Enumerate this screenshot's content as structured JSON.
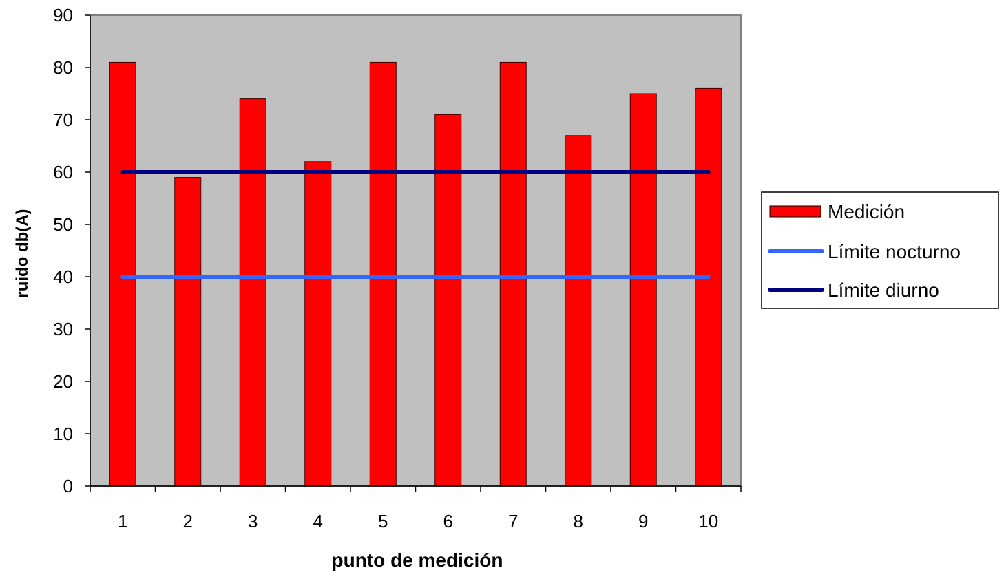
{
  "chart_data": {
    "type": "bar",
    "categories": [
      "1",
      "2",
      "3",
      "4",
      "5",
      "6",
      "7",
      "8",
      "9",
      "10"
    ],
    "series": [
      {
        "name": "Medición",
        "kind": "bar",
        "color": "#ff0000",
        "values": [
          81,
          59,
          74,
          62,
          81,
          71,
          81,
          67,
          75,
          76
        ]
      },
      {
        "name": "Límite nocturno",
        "kind": "line",
        "color": "#3366ff",
        "values": [
          40,
          40,
          40,
          40,
          40,
          40,
          40,
          40,
          40,
          40
        ]
      },
      {
        "name": "Límite diurno",
        "kind": "line",
        "color": "#000080",
        "values": [
          60,
          60,
          60,
          60,
          60,
          60,
          60,
          60,
          60,
          60
        ]
      }
    ],
    "title": "",
    "xlabel": "punto de medición",
    "ylabel": "ruido db(A)",
    "ylim": [
      0,
      90
    ],
    "yticks": [
      "0",
      "10",
      "20",
      "30",
      "40",
      "50",
      "60",
      "70",
      "80",
      "90"
    ],
    "plot_background": "#c0c0c0",
    "grid": false,
    "legend_position": "right"
  }
}
